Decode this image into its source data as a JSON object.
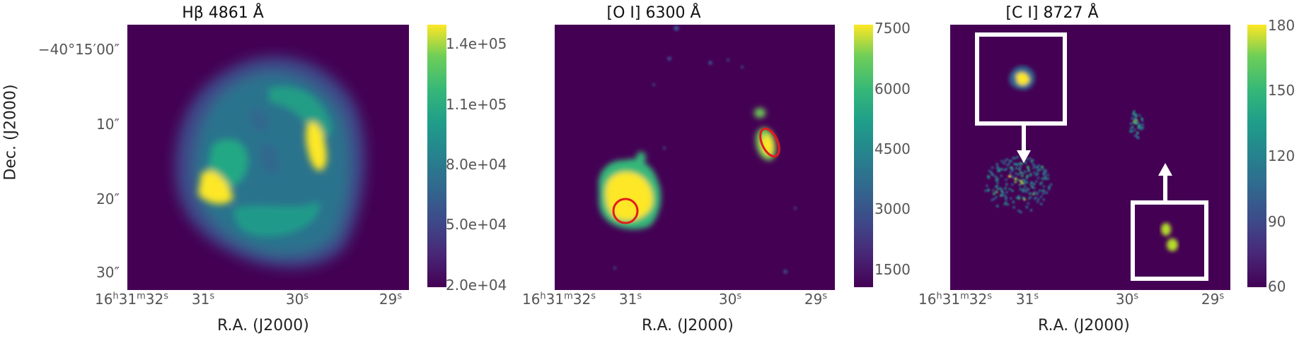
{
  "panels": [
    {
      "title": "Hβ 4861 Å",
      "colorbar_ticks": [
        "1.4e+05",
        "1.1e+05",
        "8.0e+04",
        "5.0e+04",
        "2.0e+04"
      ]
    },
    {
      "title": "[O I] 6300 Å",
      "colorbar_ticks": [
        "7500",
        "6000",
        "4500",
        "3000",
        "1500"
      ]
    },
    {
      "title": "[C I] 8727 Å",
      "colorbar_ticks": [
        "180",
        "150",
        "120",
        "90",
        "60"
      ]
    }
  ],
  "y_axis": {
    "label": "Dec. (J2000)",
    "ticks": [
      "−40°15′00″",
      "10″",
      "20″",
      "30″"
    ]
  },
  "x_axis": {
    "label": "R.A. (J2000)",
    "ticks": [
      {
        "base": "16",
        "h": "h",
        "mid": "31",
        "m": "m",
        "val": "32",
        "s": "s"
      },
      {
        "val": "31",
        "s": "s"
      },
      {
        "val": "30",
        "s": "s"
      },
      {
        "val": "29",
        "s": "s"
      }
    ]
  },
  "colormap": "viridis",
  "colors": {
    "background": "#440154",
    "low": "#472c7a",
    "mid": "#21918c",
    "high": "#fde725",
    "marker": "#e41a1c"
  }
}
